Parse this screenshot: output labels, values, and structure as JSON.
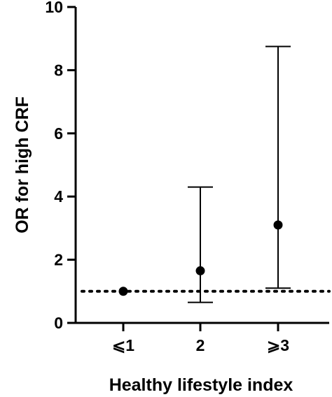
{
  "chart_data": {
    "type": "scatter",
    "title": "",
    "xlabel": "Healthy lifestyle index",
    "ylabel": "OR for high CRF",
    "categories": [
      "⩽1",
      "2",
      "⩾3"
    ],
    "ylim": [
      0,
      10
    ],
    "yticks": [
      0,
      2,
      4,
      6,
      8,
      10
    ],
    "grid": false,
    "legend": "none",
    "reference_line": {
      "y": 1,
      "style": "dotted"
    },
    "points": [
      {
        "category": "⩽1",
        "or": 1.0,
        "ci_low": null,
        "ci_high": null
      },
      {
        "category": "2",
        "or": 1.65,
        "ci_low": 0.65,
        "ci_high": 4.3
      },
      {
        "category": "⩾3",
        "or": 3.1,
        "ci_low": 1.1,
        "ci_high": 8.75
      }
    ],
    "colors": {
      "marks": "#000000",
      "background": "#ffffff"
    }
  }
}
